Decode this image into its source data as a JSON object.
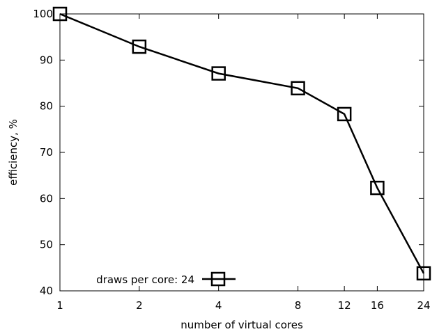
{
  "chart_data": {
    "type": "line",
    "xlabel": "number of virtual cores",
    "ylabel": "efficiency, %",
    "x_scale": "log",
    "xlim": [
      1,
      24
    ],
    "ylim": [
      40,
      100
    ],
    "xticks": [
      1,
      2,
      4,
      8,
      12,
      16,
      24
    ],
    "yticks": [
      40,
      50,
      60,
      70,
      80,
      90,
      100
    ],
    "grid": false,
    "legend_position": "bottom-left",
    "series": [
      {
        "name": "draws per core: 24",
        "marker": "square",
        "color": "#000000",
        "x": [
          1,
          2,
          4,
          8,
          12,
          16,
          24
        ],
        "y": [
          100,
          92.9,
          87.1,
          83.9,
          78.3,
          62.3,
          43.8
        ]
      }
    ]
  }
}
